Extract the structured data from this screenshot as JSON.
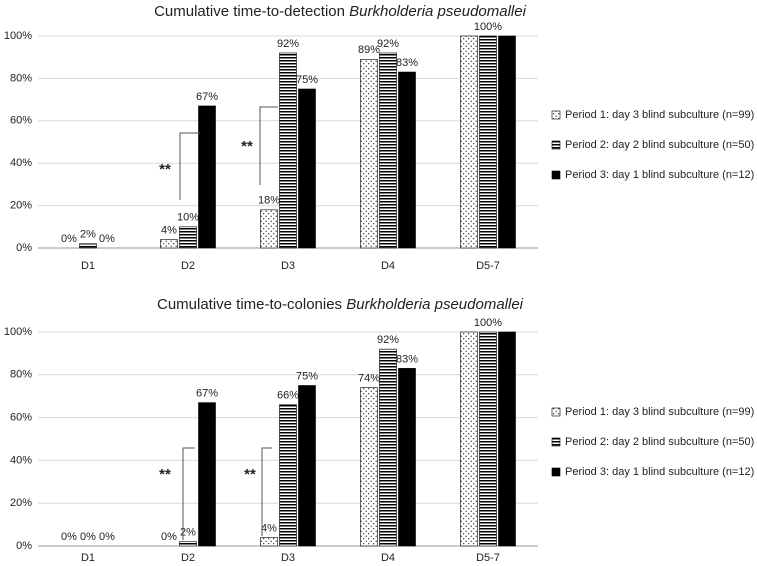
{
  "chart_data": [
    {
      "type": "bar",
      "title": [
        "Cumulative time-to-detection",
        "Burkholderia pseudomallei"
      ],
      "categories": [
        "D1",
        "D2",
        "D3",
        "D4",
        "D5-7"
      ],
      "ylim": [
        0,
        100
      ],
      "yticks": [
        {
          "value": 0,
          "label": "0%"
        },
        {
          "value": 20,
          "label": "20%"
        },
        {
          "value": 40,
          "label": "40%"
        },
        {
          "value": 60,
          "label": "60%"
        },
        {
          "value": 80,
          "label": "80%"
        },
        {
          "value": 100,
          "label": "100%"
        }
      ],
      "grid": true,
      "legend": "right",
      "annotations": [
        "**",
        "**"
      ],
      "series": [
        {
          "name": "Period 1: day 3 blind subculture (n=99)",
          "color": "#000000",
          "pattern": "dots",
          "values": [
            0,
            4,
            18,
            89,
            100
          ],
          "value_labels": [
            "0%",
            "4%",
            "18%",
            "89%",
            null
          ]
        },
        {
          "name": "Period 2: day 2 blind subculture (n=50)",
          "color": "#000000",
          "pattern": "stripes",
          "values": [
            2,
            10,
            92,
            92,
            100
          ],
          "value_labels": [
            "2%",
            "10%",
            "92%",
            "92%",
            "100%"
          ]
        },
        {
          "name": "Period 3: day 1 blind subculture (n=12)",
          "color": "#000000",
          "pattern": "solid",
          "values": [
            0,
            67,
            75,
            83,
            100
          ],
          "value_labels": [
            "0%",
            "67%",
            "75%",
            "83%",
            null
          ]
        }
      ]
    },
    {
      "type": "bar",
      "title": [
        "Cumulative time-to-colonies",
        "Burkholderia pseudomallei"
      ],
      "categories": [
        "D1",
        "D2",
        "D3",
        "D4",
        "D5-7"
      ],
      "ylim": [
        0,
        100
      ],
      "yticks": [
        {
          "value": 0,
          "label": "0%"
        },
        {
          "value": 20,
          "label": "20%"
        },
        {
          "value": 40,
          "label": "40%"
        },
        {
          "value": 60,
          "label": "60%"
        },
        {
          "value": 80,
          "label": "80%"
        },
        {
          "value": 100,
          "label": "100%"
        }
      ],
      "grid": true,
      "legend": "right",
      "annotations": [
        "**",
        "**"
      ],
      "series": [
        {
          "name": "Period 1: day 3 blind subculture (n=99)",
          "color": "#000000",
          "pattern": "dots",
          "values": [
            0,
            0,
            4,
            74,
            100
          ],
          "value_labels": [
            "0%",
            "0%",
            "4%",
            "74%",
            null
          ]
        },
        {
          "name": "Period 2: day 2 blind subculture (n=50)",
          "color": "#000000",
          "pattern": "stripes",
          "values": [
            0,
            2,
            66,
            92,
            100
          ],
          "value_labels": [
            "0%",
            "2%",
            "66%",
            "92%",
            "100%"
          ]
        },
        {
          "name": "Period 3: day 1 blind subculture (n=12)",
          "color": "#000000",
          "pattern": "solid",
          "values": [
            0,
            67,
            75,
            83,
            100
          ],
          "value_labels": [
            "0%",
            "67%",
            "75%",
            "83%",
            null
          ]
        }
      ]
    }
  ]
}
